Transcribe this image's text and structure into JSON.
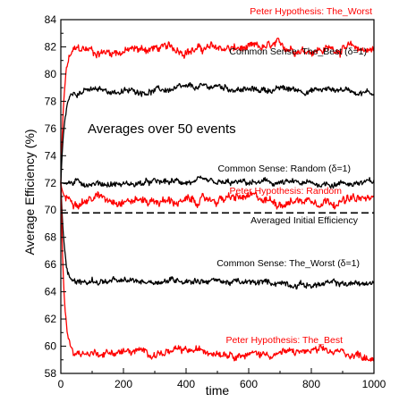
{
  "chart_data": {
    "type": "line",
    "title": "",
    "xlabel": "time",
    "ylabel": "Average Efficiency (%)",
    "xlim": [
      0,
      1000
    ],
    "ylim": [
      58,
      84
    ],
    "xticks": [
      0,
      200,
      400,
      600,
      800,
      1000
    ],
    "xtick_labels": [
      "0",
      "200",
      "400",
      "600",
      "800",
      "1000"
    ],
    "yticks": [
      58,
      60,
      62,
      64,
      66,
      68,
      70,
      72,
      74,
      76,
      78,
      80,
      82,
      84
    ],
    "ytick_labels": [
      "58",
      "60",
      "62",
      "64",
      "66",
      "68",
      "70",
      "72",
      "74",
      "76",
      "78",
      "80",
      "82",
      "84"
    ],
    "grid": false,
    "reference_line": {
      "y": 69.8,
      "label": "Averaged Initial Efficiency",
      "style": "dashed",
      "color": "#000000"
    },
    "annotation": "Averages over 50 events",
    "series": [
      {
        "name": "Peter Hypothesis: The_Worst",
        "color": "#ff0000",
        "start": 72,
        "plateau": 81.8,
        "rise_time": 40,
        "noise": 0.35,
        "x": [
          0,
          100,
          200,
          300,
          400,
          500,
          600,
          700,
          800,
          900,
          1000
        ],
        "values": [
          72,
          81.6,
          81.7,
          81.9,
          81.8,
          81.9,
          81.8,
          82.0,
          81.8,
          81.9,
          81.8
        ]
      },
      {
        "name": "Common Sense: The_Best  (δ=1)",
        "color": "#000000",
        "start": 72,
        "plateau": 78.8,
        "rise_time": 45,
        "noise": 0.25,
        "x": [
          0,
          100,
          200,
          300,
          400,
          500,
          600,
          700,
          800,
          900,
          1000
        ],
        "values": [
          72,
          78.8,
          78.7,
          78.8,
          78.9,
          79.1,
          78.8,
          78.9,
          78.8,
          78.9,
          78.6
        ]
      },
      {
        "name": "Common Sense: Random  (δ=1)",
        "color": "#000000",
        "start": 72,
        "plateau": 72.0,
        "rise_time": 10,
        "noise": 0.25,
        "x": [
          0,
          100,
          200,
          300,
          400,
          500,
          600,
          700,
          800,
          900,
          1000
        ],
        "values": [
          72,
          72.0,
          71.9,
          72.0,
          72.1,
          71.9,
          72.0,
          72.0,
          71.9,
          72.0,
          72.0
        ]
      },
      {
        "name": "Peter Hypothesis: Random",
        "color": "#ff0000",
        "start": 72,
        "plateau": 70.8,
        "rise_time": 30,
        "noise": 0.35,
        "x": [
          0,
          100,
          200,
          300,
          400,
          500,
          600,
          700,
          800,
          900,
          1000
        ],
        "values": [
          72,
          71.0,
          70.8,
          70.7,
          70.6,
          70.8,
          70.9,
          70.6,
          70.8,
          70.7,
          70.8
        ]
      },
      {
        "name": "Common Sense: The_Worst  (δ=1)",
        "color": "#000000",
        "start": 72,
        "plateau": 64.7,
        "rise_time": 45,
        "noise": 0.25,
        "x": [
          0,
          100,
          200,
          300,
          400,
          500,
          600,
          700,
          800,
          900,
          1000
        ],
        "values": [
          72,
          64.8,
          64.7,
          64.8,
          64.9,
          64.8,
          64.6,
          64.7,
          64.5,
          64.6,
          64.6
        ]
      },
      {
        "name": "Peter Hypothesis: The_Best",
        "color": "#ff0000",
        "start": 72,
        "plateau": 59.5,
        "rise_time": 40,
        "noise": 0.3,
        "x": [
          0,
          100,
          200,
          300,
          400,
          500,
          600,
          700,
          800,
          900,
          1000
        ],
        "values": [
          72,
          59.5,
          59.6,
          59.5,
          59.6,
          59.7,
          59.4,
          59.5,
          59.6,
          59.5,
          59.2
        ]
      }
    ]
  }
}
